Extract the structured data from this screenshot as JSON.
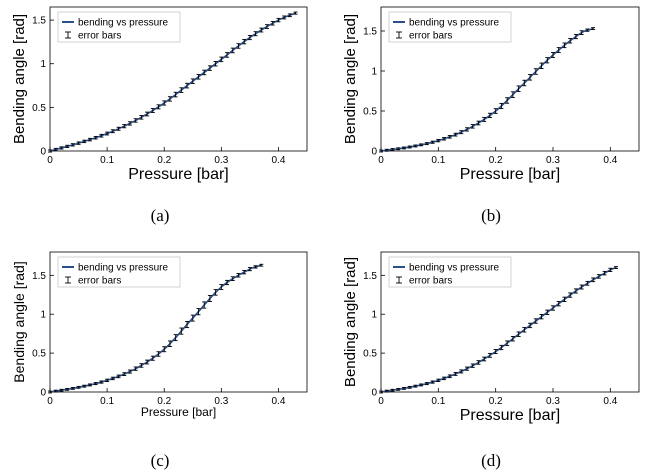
{
  "colors": {
    "line": "#2a4f8a",
    "errorbar": "#000000"
  },
  "chart_data": [
    {
      "type": "line",
      "caption": "(a)",
      "xlabel": "Pressure [bar]",
      "ylabel": "Bending angle [rad]",
      "xlim": [
        0,
        0.45
      ],
      "ylim": [
        0,
        1.65
      ],
      "xticks": [
        "0",
        "0.1",
        "0.2",
        "0.3",
        "0.4"
      ],
      "yticks": [
        "0",
        "0.5",
        "1",
        "1.5"
      ],
      "legend": [
        "bending vs pressure",
        "error bars"
      ],
      "legend_position": "top-left",
      "grid": false,
      "series": [
        {
          "name": "bending vs pressure",
          "x": [
            0,
            0.05,
            0.1,
            0.15,
            0.2,
            0.25,
            0.3,
            0.35,
            0.4,
            0.43
          ],
          "y": [
            0,
            0.09,
            0.2,
            0.35,
            0.55,
            0.8,
            1.05,
            1.3,
            1.5,
            1.58
          ]
        }
      ]
    },
    {
      "type": "line",
      "caption": "(b)",
      "xlabel": "Pressure [bar]",
      "ylabel": "Bending angle [rad]",
      "xlim": [
        0,
        0.45
      ],
      "ylim": [
        0,
        1.8
      ],
      "xticks": [
        "0",
        "0.1",
        "0.2",
        "0.3",
        "0.4"
      ],
      "yticks": [
        "0",
        "0.5",
        "1",
        "1.5"
      ],
      "legend": [
        "bending vs pressure",
        "error bars"
      ],
      "legend_position": "top-left",
      "grid": false,
      "series": [
        {
          "name": "bending vs pressure",
          "x": [
            0,
            0.05,
            0.1,
            0.15,
            0.2,
            0.25,
            0.3,
            0.35,
            0.37
          ],
          "y": [
            0,
            0.05,
            0.13,
            0.27,
            0.5,
            0.85,
            1.2,
            1.48,
            1.53
          ]
        }
      ]
    },
    {
      "type": "line",
      "caption": "(c)",
      "xlabel": "Pressure [bar]",
      "ylabel": "Bending angle [rad]",
      "xlim": [
        0,
        0.45
      ],
      "ylim": [
        0,
        1.8
      ],
      "xticks": [
        "0",
        "0.1",
        "0.2",
        "0.3",
        "0.4"
      ],
      "yticks": [
        "0",
        "0.5",
        "1",
        "1.5"
      ],
      "legend": [
        "bending vs pressure",
        "error bars"
      ],
      "legend_position": "top-left",
      "grid": false,
      "series": [
        {
          "name": "bending vs pressure",
          "x": [
            0,
            0.05,
            0.1,
            0.15,
            0.2,
            0.25,
            0.3,
            0.35,
            0.37
          ],
          "y": [
            0,
            0.06,
            0.15,
            0.3,
            0.55,
            0.95,
            1.35,
            1.58,
            1.63
          ]
        }
      ]
    },
    {
      "type": "line",
      "caption": "(d)",
      "xlabel": "Pressure [bar]",
      "ylabel": "Bending angle [rad]",
      "xlim": [
        0,
        0.45
      ],
      "ylim": [
        0,
        1.8
      ],
      "xticks": [
        "0",
        "0.1",
        "0.2",
        "0.3",
        "0.4"
      ],
      "yticks": [
        "0",
        "0.5",
        "1",
        "1.5"
      ],
      "legend": [
        "bending vs pressure",
        "error bars"
      ],
      "legend_position": "top-left",
      "grid": false,
      "series": [
        {
          "name": "bending vs pressure",
          "x": [
            0,
            0.05,
            0.1,
            0.15,
            0.2,
            0.25,
            0.3,
            0.35,
            0.4,
            0.41
          ],
          "y": [
            0,
            0.06,
            0.15,
            0.3,
            0.52,
            0.8,
            1.08,
            1.35,
            1.57,
            1.6
          ]
        }
      ]
    }
  ]
}
